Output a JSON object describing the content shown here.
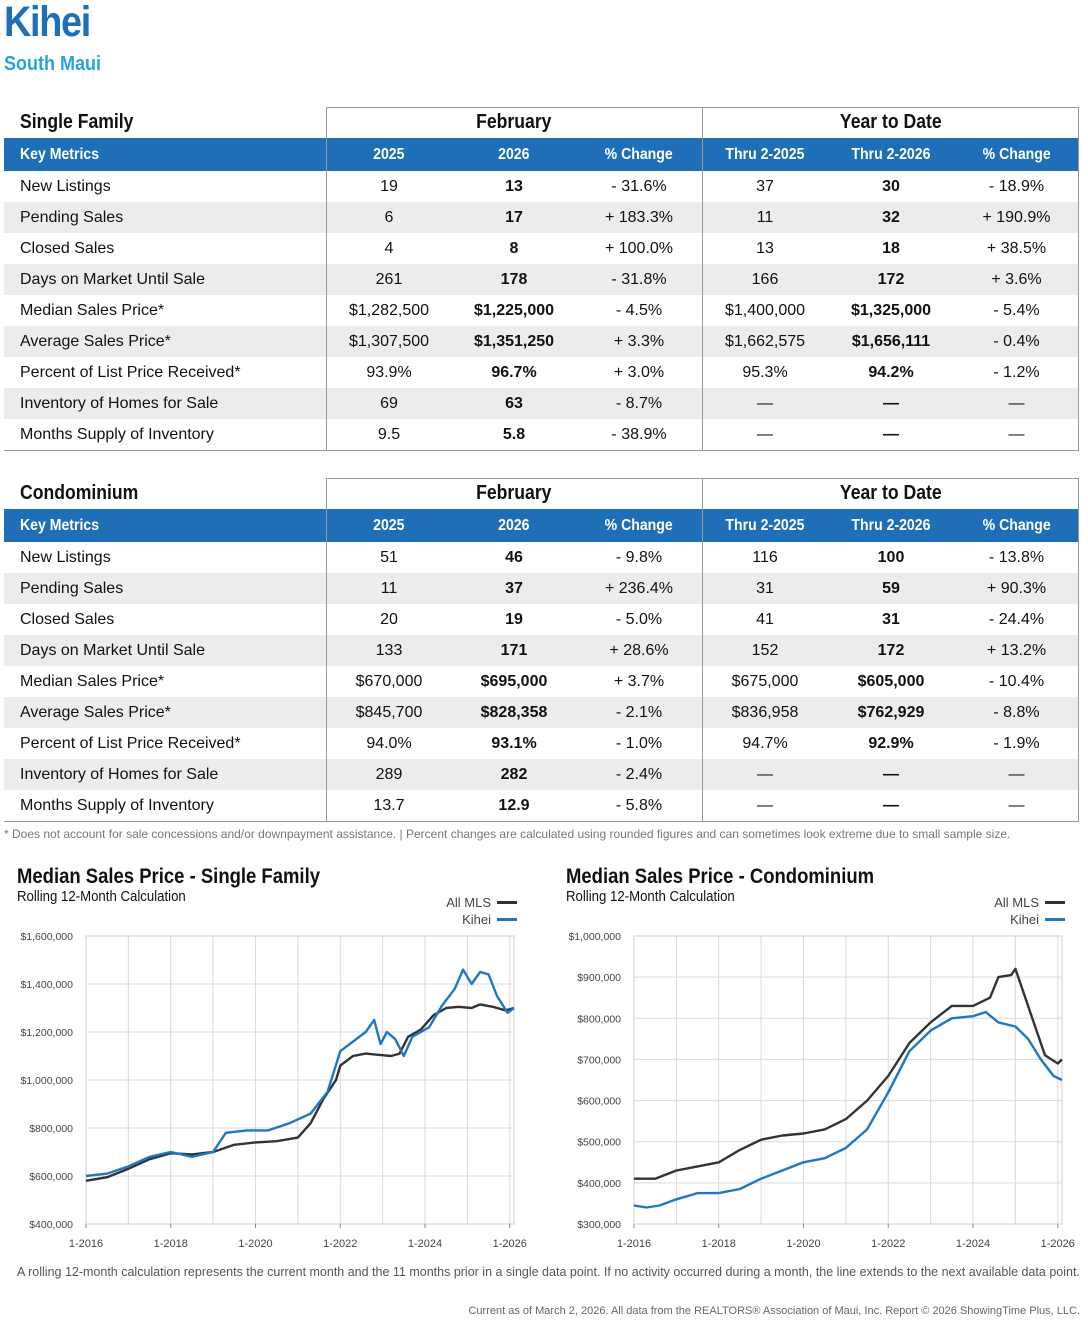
{
  "header": {
    "title": "Kihei",
    "subtitle": "South Maui"
  },
  "columns": {
    "group_month": "February",
    "group_ytd": "Year to Date",
    "key_metrics": "Key Metrics",
    "y1": "2025",
    "y2": "2026",
    "pct": "% Change",
    "ytd1": "Thru 2-2025",
    "ytd2": "Thru 2-2026",
    "pct_ytd": "% Change"
  },
  "single_family": {
    "label": "Single Family",
    "rows": [
      [
        "New Listings",
        "19",
        "13",
        "- 31.6%",
        "37",
        "30",
        "- 18.9%"
      ],
      [
        "Pending Sales",
        "6",
        "17",
        "+ 183.3%",
        "11",
        "32",
        "+ 190.9%"
      ],
      [
        "Closed Sales",
        "4",
        "8",
        "+ 100.0%",
        "13",
        "18",
        "+ 38.5%"
      ],
      [
        "Days on Market Until Sale",
        "261",
        "178",
        "- 31.8%",
        "166",
        "172",
        "+ 3.6%"
      ],
      [
        "Median Sales Price*",
        "$1,282,500",
        "$1,225,000",
        "- 4.5%",
        "$1,400,000",
        "$1,325,000",
        "- 5.4%"
      ],
      [
        "Average Sales Price*",
        "$1,307,500",
        "$1,351,250",
        "+ 3.3%",
        "$1,662,575",
        "$1,656,111",
        "- 0.4%"
      ],
      [
        "Percent of List Price Received*",
        "93.9%",
        "96.7%",
        "+ 3.0%",
        "95.3%",
        "94.2%",
        "- 1.2%"
      ],
      [
        "Inventory of Homes for Sale",
        "69",
        "63",
        "- 8.7%",
        "—",
        "—",
        "—"
      ],
      [
        "Months Supply of Inventory",
        "9.5",
        "5.8",
        "- 38.9%",
        "—",
        "—",
        "—"
      ]
    ]
  },
  "condominium": {
    "label": "Condominium",
    "rows": [
      [
        "New Listings",
        "51",
        "46",
        "- 9.8%",
        "116",
        "100",
        "- 13.8%"
      ],
      [
        "Pending Sales",
        "11",
        "37",
        "+ 236.4%",
        "31",
        "59",
        "+ 90.3%"
      ],
      [
        "Closed Sales",
        "20",
        "19",
        "- 5.0%",
        "41",
        "31",
        "- 24.4%"
      ],
      [
        "Days on Market Until Sale",
        "133",
        "171",
        "+ 28.6%",
        "152",
        "172",
        "+ 13.2%"
      ],
      [
        "Median Sales Price*",
        "$670,000",
        "$695,000",
        "+ 3.7%",
        "$675,000",
        "$605,000",
        "- 10.4%"
      ],
      [
        "Average Sales Price*",
        "$845,700",
        "$828,358",
        "- 2.1%",
        "$836,958",
        "$762,929",
        "- 8.8%"
      ],
      [
        "Percent of List Price Received*",
        "94.0%",
        "93.1%",
        "- 1.0%",
        "94.7%",
        "92.9%",
        "- 1.9%"
      ],
      [
        "Inventory of Homes for Sale",
        "289",
        "282",
        "- 2.4%",
        "—",
        "—",
        "—"
      ],
      [
        "Months Supply of Inventory",
        "13.7",
        "12.9",
        "- 5.8%",
        "—",
        "—",
        "—"
      ]
    ]
  },
  "footnote": "* Does not account for sale concessions and/or downpayment assistance. | Percent changes are calculated using rounded figures and can sometimes look extreme due to small sample size.",
  "colors": {
    "brand": "#1e6fb8",
    "accent": "#29a3dd",
    "all_mls": "#333333",
    "kihei": "#1f77c4"
  },
  "chart_data": [
    {
      "type": "line",
      "title": "Median Sales Price - Single Family",
      "subtitle": "Rolling 12-Month Calculation",
      "x_ticks": [
        "1-2016",
        "1-2018",
        "1-2020",
        "1-2022",
        "1-2024",
        "1-2026"
      ],
      "y_ticks": [
        "$400,000",
        "$600,000",
        "$800,000",
        "$1,000,000",
        "$1,200,000",
        "$1,400,000",
        "$1,600,000"
      ],
      "xlim": [
        2016,
        2026.1
      ],
      "ylim": [
        400000,
        1600000
      ],
      "legend_position": "top-right",
      "series": [
        {
          "name": "All MLS",
          "points": [
            [
              2016,
              580000
            ],
            [
              2016.5,
              595000
            ],
            [
              2017,
              630000
            ],
            [
              2017.5,
              670000
            ],
            [
              2018,
              695000
            ],
            [
              2018.5,
              690000
            ],
            [
              2019,
              700000
            ],
            [
              2019.5,
              730000
            ],
            [
              2020,
              740000
            ],
            [
              2020.5,
              745000
            ],
            [
              2021,
              760000
            ],
            [
              2021.3,
              820000
            ],
            [
              2021.6,
              920000
            ],
            [
              2021.9,
              1000000
            ],
            [
              2022,
              1060000
            ],
            [
              2022.3,
              1100000
            ],
            [
              2022.6,
              1110000
            ],
            [
              2022.9,
              1105000
            ],
            [
              2023.2,
              1100000
            ],
            [
              2023.4,
              1110000
            ],
            [
              2023.6,
              1180000
            ],
            [
              2023.9,
              1210000
            ],
            [
              2024.2,
              1270000
            ],
            [
              2024.5,
              1300000
            ],
            [
              2024.8,
              1305000
            ],
            [
              2025.1,
              1300000
            ],
            [
              2025.3,
              1315000
            ],
            [
              2025.6,
              1305000
            ],
            [
              2025.9,
              1290000
            ],
            [
              2026.1,
              1300000
            ]
          ]
        },
        {
          "name": "Kihei",
          "points": [
            [
              2016,
              600000
            ],
            [
              2016.5,
              610000
            ],
            [
              2017,
              640000
            ],
            [
              2017.5,
              680000
            ],
            [
              2018,
              700000
            ],
            [
              2018.5,
              680000
            ],
            [
              2019,
              700000
            ],
            [
              2019.3,
              780000
            ],
            [
              2019.8,
              790000
            ],
            [
              2020.3,
              790000
            ],
            [
              2020.8,
              820000
            ],
            [
              2021.3,
              860000
            ],
            [
              2021.7,
              950000
            ],
            [
              2022,
              1120000
            ],
            [
              2022.3,
              1160000
            ],
            [
              2022.6,
              1200000
            ],
            [
              2022.8,
              1250000
            ],
            [
              2022.95,
              1150000
            ],
            [
              2023.1,
              1200000
            ],
            [
              2023.3,
              1170000
            ],
            [
              2023.5,
              1100000
            ],
            [
              2023.7,
              1180000
            ],
            [
              2024.1,
              1220000
            ],
            [
              2024.4,
              1310000
            ],
            [
              2024.7,
              1380000
            ],
            [
              2024.9,
              1460000
            ],
            [
              2025.1,
              1400000
            ],
            [
              2025.3,
              1450000
            ],
            [
              2025.5,
              1440000
            ],
            [
              2025.7,
              1350000
            ],
            [
              2025.95,
              1280000
            ],
            [
              2026.1,
              1300000
            ]
          ]
        }
      ]
    },
    {
      "type": "line",
      "title": "Median Sales Price - Condominium",
      "subtitle": "Rolling 12-Month Calculation",
      "x_ticks": [
        "1-2016",
        "1-2018",
        "1-2020",
        "1-2022",
        "1-2024",
        "1-2026"
      ],
      "y_ticks": [
        "$300,000",
        "$400,000",
        "$500,000",
        "$600,000",
        "$700,000",
        "$800,000",
        "$900,000",
        "$1,000,000"
      ],
      "xlim": [
        2016,
        2026.1
      ],
      "ylim": [
        300000,
        1000000
      ],
      "legend_position": "top-right",
      "series": [
        {
          "name": "All MLS",
          "points": [
            [
              2016,
              410000
            ],
            [
              2016.5,
              410000
            ],
            [
              2017,
              430000
            ],
            [
              2017.5,
              440000
            ],
            [
              2018,
              450000
            ],
            [
              2018.5,
              480000
            ],
            [
              2019,
              505000
            ],
            [
              2019.5,
              515000
            ],
            [
              2020,
              520000
            ],
            [
              2020.5,
              530000
            ],
            [
              2021,
              555000
            ],
            [
              2021.5,
              600000
            ],
            [
              2022,
              660000
            ],
            [
              2022.5,
              740000
            ],
            [
              2023,
              790000
            ],
            [
              2023.5,
              830000
            ],
            [
              2024,
              830000
            ],
            [
              2024.4,
              850000
            ],
            [
              2024.6,
              900000
            ],
            [
              2024.9,
              905000
            ],
            [
              2025,
              920000
            ],
            [
              2025.2,
              860000
            ],
            [
              2025.4,
              800000
            ],
            [
              2025.7,
              710000
            ],
            [
              2026,
              690000
            ],
            [
              2026.1,
              700000
            ]
          ]
        },
        {
          "name": "Kihei",
          "points": [
            [
              2016,
              345000
            ],
            [
              2016.3,
              340000
            ],
            [
              2016.6,
              345000
            ],
            [
              2017,
              360000
            ],
            [
              2017.5,
              375000
            ],
            [
              2018,
              375000
            ],
            [
              2018.5,
              385000
            ],
            [
              2019,
              410000
            ],
            [
              2019.5,
              430000
            ],
            [
              2020,
              450000
            ],
            [
              2020.5,
              460000
            ],
            [
              2021,
              485000
            ],
            [
              2021.5,
              530000
            ],
            [
              2022,
              620000
            ],
            [
              2022.5,
              720000
            ],
            [
              2023,
              770000
            ],
            [
              2023.5,
              800000
            ],
            [
              2024,
              805000
            ],
            [
              2024.3,
              815000
            ],
            [
              2024.6,
              790000
            ],
            [
              2025,
              780000
            ],
            [
              2025.3,
              750000
            ],
            [
              2025.6,
              700000
            ],
            [
              2025.9,
              660000
            ],
            [
              2026.1,
              650000
            ]
          ]
        }
      ]
    }
  ],
  "bottom_note": "A rolling 12-month calculation represents the current month and the 11 months prior in a single data point. If no activity occurred during a month, the line extends to the next available data point.",
  "credit": "Current as of March 2, 2026. All data from the REALTORS® Association of Maui, Inc. Report © 2026 ShowingTime Plus, LLC."
}
